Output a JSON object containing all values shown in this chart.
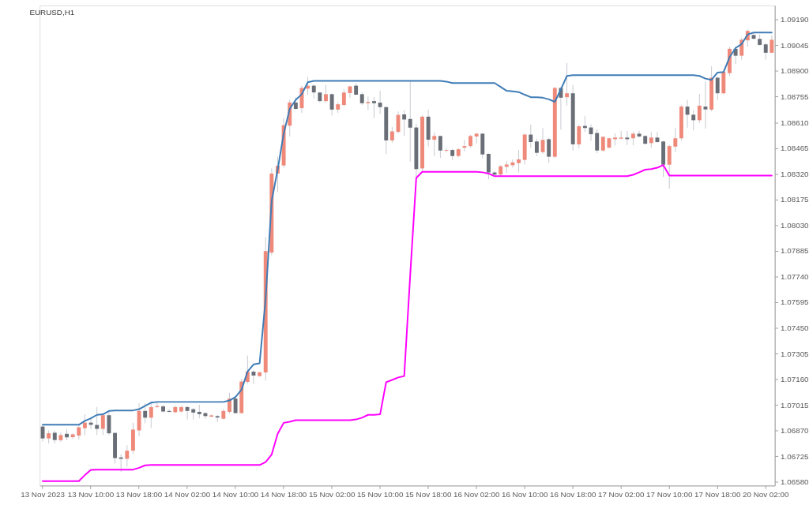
{
  "chart_data": {
    "type": "candlestick",
    "title": "EURUSD,H1",
    "categories": [
      "13 Nov 2023",
      null,
      null,
      null,
      null,
      null,
      null,
      null,
      "13 Nov 10:00",
      null,
      null,
      null,
      null,
      null,
      null,
      null,
      "13 Nov 18:00",
      null,
      null,
      null,
      null,
      null,
      null,
      null,
      "14 Nov 02:00",
      null,
      null,
      null,
      null,
      null,
      null,
      null,
      "14 Nov 10:00",
      null,
      null,
      null,
      null,
      null,
      null,
      null,
      "14 Nov 18:00",
      null,
      null,
      null,
      null,
      null,
      null,
      null,
      "15 Nov 02:00",
      null,
      null,
      null,
      null,
      null,
      null,
      null,
      "15 Nov 10:00",
      null,
      null,
      null,
      null,
      null,
      null,
      null,
      "15 Nov 18:00",
      null,
      null,
      null,
      null,
      null,
      null,
      null,
      "16 Nov 02:00",
      null,
      null,
      null,
      null,
      null,
      null,
      null,
      "16 Nov 10:00",
      null,
      null,
      null,
      null,
      null,
      null,
      null,
      "16 Nov 18:00",
      null,
      null,
      null,
      null,
      null,
      null,
      null,
      "17 Nov 02:00",
      null,
      null,
      null,
      null,
      null,
      null,
      null,
      "17 Nov 10:00",
      null,
      null,
      null,
      null,
      null,
      null,
      null,
      "17 Nov 18:00",
      null,
      null,
      null,
      null,
      null,
      null,
      null,
      "20 Nov 02:00",
      null
    ],
    "ohlc": [
      [
        1.06893,
        1.06903,
        1.06808,
        1.06826
      ],
      [
        1.06826,
        1.06871,
        1.06798,
        1.06855
      ],
      [
        1.06858,
        1.06871,
        1.06798,
        1.06817
      ],
      [
        1.06816,
        1.0686,
        1.06806,
        1.06845
      ],
      [
        1.06852,
        1.06879,
        1.06816,
        1.06832
      ],
      [
        1.06833,
        1.06855,
        1.06823,
        1.06849
      ],
      [
        1.06842,
        1.06903,
        1.0682,
        1.06889
      ],
      [
        1.06884,
        1.06962,
        1.06845,
        1.06915
      ],
      [
        1.06915,
        1.06943,
        1.06879,
        1.06903
      ],
      [
        1.06902,
        1.07003,
        1.06845,
        1.0688
      ],
      [
        1.0688,
        1.06966,
        1.06845,
        1.06957
      ],
      [
        1.06957,
        1.06976,
        1.06845,
        1.06855
      ],
      [
        1.06857,
        1.0686,
        1.06684,
        1.06715
      ],
      [
        1.06719,
        1.06738,
        1.06638,
        1.06711
      ],
      [
        1.06711,
        1.06787,
        1.06667,
        1.06757
      ],
      [
        1.06757,
        1.06914,
        1.06738,
        1.06876
      ],
      [
        1.06871,
        1.07025,
        1.06838,
        1.06981
      ],
      [
        1.06981,
        1.07025,
        1.06911,
        1.06943
      ],
      [
        1.06943,
        1.07035,
        1.06884,
        1.07003
      ],
      [
        1.07003,
        1.07035,
        1.06998,
        1.07009
      ],
      [
        1.07007,
        1.07016,
        1.06972,
        1.06978
      ],
      [
        1.06981,
        1.06991,
        1.06972,
        1.06976
      ],
      [
        1.06974,
        1.07013,
        1.06969,
        1.07003
      ],
      [
        1.06978,
        1.0701,
        1.06972,
        1.07003
      ],
      [
        1.07003,
        1.0701,
        1.06933,
        1.06981
      ],
      [
        1.06991,
        1.06998,
        1.06933,
        1.06972
      ],
      [
        1.06976,
        1.07016,
        1.0694,
        1.06963
      ],
      [
        1.06969,
        1.06972,
        1.06937,
        1.06952
      ],
      [
        1.06949,
        1.06962,
        1.06946,
        1.06956
      ],
      [
        1.06952,
        1.06958,
        1.06918,
        1.06944
      ],
      [
        1.06937,
        1.06991,
        1.06933,
        1.06981
      ],
      [
        1.06976,
        1.07083,
        1.06966,
        1.07051
      ],
      [
        1.07051,
        1.07057,
        1.06966,
        1.06969
      ],
      [
        1.06969,
        1.07162,
        1.06966,
        1.07147
      ],
      [
        1.07145,
        1.07294,
        1.07134,
        1.07203
      ],
      [
        1.07203,
        1.0721,
        1.07134,
        1.07181
      ],
      [
        1.07178,
        1.07203,
        1.07174,
        1.07199
      ],
      [
        1.07199,
        1.07963,
        1.07152,
        1.07883
      ],
      [
        1.07875,
        1.0835,
        1.0786,
        1.08321
      ],
      [
        1.08321,
        1.08416,
        1.08218,
        1.08365
      ],
      [
        1.08367,
        1.08635,
        1.08354,
        1.08594
      ],
      [
        1.08591,
        1.08737,
        1.0853,
        1.08722
      ],
      [
        1.08722,
        1.08752,
        1.08682,
        1.08686
      ],
      [
        1.0869,
        1.08817,
        1.08664,
        1.08804
      ],
      [
        1.088,
        1.08866,
        1.08766,
        1.08817
      ],
      [
        1.08817,
        1.08825,
        1.08744,
        1.08779
      ],
      [
        1.08778,
        1.08784,
        1.08722,
        1.0873
      ],
      [
        1.0873,
        1.08822,
        1.08722,
        1.08769
      ],
      [
        1.08769,
        1.08774,
        1.08649,
        1.08682
      ],
      [
        1.08682,
        1.08722,
        1.08664,
        1.08712
      ],
      [
        1.08708,
        1.08796,
        1.08701,
        1.08778
      ],
      [
        1.08775,
        1.08817,
        1.08749,
        1.08813
      ],
      [
        1.08817,
        1.08831,
        1.08763,
        1.08766
      ],
      [
        1.08769,
        1.08781,
        1.08708,
        1.08718
      ],
      [
        1.08718,
        1.08756,
        1.08679,
        1.08725
      ],
      [
        1.0873,
        1.08752,
        1.08635,
        1.08718
      ],
      [
        1.08721,
        1.08787,
        1.08657,
        1.08696
      ],
      [
        1.08696,
        1.08701,
        1.0843,
        1.08508
      ],
      [
        1.08508,
        1.08584,
        1.08495,
        1.08559
      ],
      [
        1.08556,
        1.08671,
        1.08547,
        1.08652
      ],
      [
        1.08655,
        1.08679,
        1.08533,
        1.08626
      ],
      [
        1.08629,
        1.08842,
        1.08389,
        1.0858
      ],
      [
        1.08581,
        1.08603,
        1.08302,
        1.08346
      ],
      [
        1.0835,
        1.0865,
        1.08335,
        1.08642
      ],
      [
        1.08642,
        1.08682,
        1.08474,
        1.08512
      ],
      [
        1.08512,
        1.08554,
        1.08419,
        1.08533
      ],
      [
        1.08533,
        1.08535,
        1.0841,
        1.08451
      ],
      [
        1.0845,
        1.08462,
        1.0844,
        1.08454
      ],
      [
        1.08454,
        1.0846,
        1.08398,
        1.0842
      ],
      [
        1.0842,
        1.08465,
        1.08413,
        1.08458
      ],
      [
        1.08467,
        1.08511,
        1.08445,
        1.08476
      ],
      [
        1.08476,
        1.08539,
        1.08467,
        1.08533
      ],
      [
        1.0853,
        1.08549,
        1.0849,
        1.08546
      ],
      [
        1.08546,
        1.0855,
        1.08407,
        1.08429
      ],
      [
        1.08432,
        1.08435,
        1.08289,
        1.08327
      ],
      [
        1.08327,
        1.08334,
        1.08309,
        1.08315
      ],
      [
        1.08315,
        1.08368,
        1.08309,
        1.08362
      ],
      [
        1.08359,
        1.08392,
        1.08324,
        1.08372
      ],
      [
        1.08368,
        1.08401,
        1.08354,
        1.08384
      ],
      [
        1.0838,
        1.08455,
        1.08328,
        1.08401
      ],
      [
        1.08398,
        1.08547,
        1.08372,
        1.08541
      ],
      [
        1.08541,
        1.08598,
        1.08467,
        1.08499
      ],
      [
        1.08502,
        1.08518,
        1.08419,
        1.08438
      ],
      [
        1.08442,
        1.08577,
        1.08433,
        1.08511
      ],
      [
        1.08515,
        1.08524,
        1.08381,
        1.08416
      ],
      [
        1.08416,
        1.0881,
        1.08407,
        1.08804
      ],
      [
        1.08804,
        1.08813,
        1.08569,
        1.08749
      ],
      [
        1.08752,
        1.08945,
        1.08705,
        1.08774
      ],
      [
        1.08774,
        1.08822,
        1.08451,
        1.08486
      ],
      [
        1.08486,
        1.08598,
        1.08463,
        1.08588
      ],
      [
        1.0859,
        1.08647,
        1.08555,
        1.08578
      ],
      [
        1.08581,
        1.08598,
        1.08506,
        1.08543
      ],
      [
        1.0855,
        1.08572,
        1.08436,
        1.08451
      ],
      [
        1.08451,
        1.08533,
        1.08442,
        1.08528
      ],
      [
        1.08467,
        1.08524,
        1.08464,
        1.0852
      ],
      [
        1.08515,
        1.08547,
        1.0848,
        1.08524
      ],
      [
        1.08518,
        1.08562,
        1.08515,
        1.08524
      ],
      [
        1.08524,
        1.08562,
        1.08482,
        1.08515
      ],
      [
        1.0852,
        1.08558,
        1.0848,
        1.08546
      ],
      [
        1.08546,
        1.08562,
        1.08525,
        1.0853
      ],
      [
        1.08533,
        1.08537,
        1.08486,
        1.08489
      ],
      [
        1.08493,
        1.08555,
        1.08467,
        1.08524
      ],
      [
        1.08524,
        1.08555,
        1.08496,
        1.08499
      ],
      [
        1.08502,
        1.08506,
        1.08302,
        1.08371
      ],
      [
        1.08371,
        1.08484,
        1.08236,
        1.08476
      ],
      [
        1.08473,
        1.08577,
        1.08442,
        1.0852
      ],
      [
        1.0852,
        1.08708,
        1.08507,
        1.08699
      ],
      [
        1.08699,
        1.08737,
        1.0858,
        1.08653
      ],
      [
        1.08653,
        1.08679,
        1.08565,
        1.08622
      ],
      [
        1.08622,
        1.0877,
        1.08606,
        1.08704
      ],
      [
        1.08699,
        1.0884,
        1.08574,
        1.08683
      ],
      [
        1.08682,
        1.08927,
        1.08673,
        1.08862
      ],
      [
        1.08862,
        1.08869,
        1.08735,
        1.08774
      ],
      [
        1.08774,
        1.08905,
        1.08767,
        1.08895
      ],
      [
        1.08888,
        1.09037,
        1.08872,
        1.09025
      ],
      [
        1.09025,
        1.09037,
        1.08939,
        1.08986
      ],
      [
        1.08986,
        1.09088,
        1.08964,
        1.09076
      ],
      [
        1.09073,
        1.09135,
        1.09037,
        1.09126
      ],
      [
        1.09103,
        1.09109,
        1.09076,
        1.09082
      ],
      [
        1.09081,
        1.09106,
        1.09044,
        1.09047
      ],
      [
        1.0905,
        1.09059,
        1.08964,
        1.09003
      ],
      [
        1.09003,
        1.091,
        1.09,
        1.09076
      ]
    ],
    "colors": [
      "#6a6f77",
      "#ef8a7b",
      "#6a6f77",
      "#ef8a7b",
      "#6a6f77",
      "#ef8a7b",
      "#ef8a7b",
      "#ef8a7b",
      "#6a6f77",
      "#6a6f77",
      "#ef8a7b",
      "#6a6f77",
      "#6a6f77",
      "#6a6f77",
      "#ef8a7b",
      "#ef8a7b",
      "#ef8a7b",
      "#6a6f77",
      "#ef8a7b",
      "#ef8a7b",
      "#6a6f77",
      "#6a6f77",
      "#ef8a7b",
      "#ef8a7b",
      "#6a6f77",
      "#6a6f77",
      "#6a6f77",
      "#6a6f77",
      "#ef8a7b",
      "#6a6f77",
      "#ef8a7b",
      "#ef8a7b",
      "#6a6f77",
      "#ef8a7b",
      "#ef8a7b",
      "#6a6f77",
      "#ef8a7b",
      "#ef8a7b",
      "#ef8a7b",
      "#ef8a7b",
      "#ef8a7b",
      "#ef8a7b",
      "#6a6f77",
      "#ef8a7b",
      "#ef8a7b",
      "#6a6f77",
      "#6a6f77",
      "#ef8a7b",
      "#6a6f77",
      "#ef8a7b",
      "#ef8a7b",
      "#ef8a7b",
      "#6a6f77",
      "#6a6f77",
      "#ef8a7b",
      "#6a6f77",
      "#6a6f77",
      "#6a6f77",
      "#ef8a7b",
      "#ef8a7b",
      "#6a6f77",
      "#6a6f77",
      "#6a6f77",
      "#ef8a7b",
      "#6a6f77",
      "#ef8a7b",
      "#6a6f77",
      "#ef8a7b",
      "#6a6f77",
      "#ef8a7b",
      "#ef8a7b",
      "#ef8a7b",
      "#ef8a7b",
      "#6a6f77",
      "#6a6f77",
      "#6a6f77",
      "#ef8a7b",
      "#ef8a7b",
      "#ef8a7b",
      "#ef8a7b",
      "#ef8a7b",
      "#6a6f77",
      "#6a6f77",
      "#ef8a7b",
      "#6a6f77",
      "#ef8a7b",
      "#6a6f77",
      "#ef8a7b",
      "#6a6f77",
      "#ef8a7b",
      "#6a6f77",
      "#6a6f77",
      "#6a6f77",
      "#ef8a7b",
      "#ef8a7b",
      "#ef8a7b",
      "#ef8a7b",
      "#6a6f77",
      "#ef8a7b",
      "#6a6f77",
      "#6a6f77",
      "#ef8a7b",
      "#6a6f77",
      "#6a6f77",
      "#ef8a7b",
      "#ef8a7b",
      "#ef8a7b",
      "#6a6f77",
      "#6a6f77",
      "#ef8a7b",
      "#6a6f77",
      "#ef8a7b",
      "#6a6f77",
      "#ef8a7b",
      "#ef8a7b",
      "#6a6f77",
      "#ef8a7b",
      "#ef8a7b",
      "#6a6f77",
      "#6a6f77",
      "#6a6f77",
      "#ef8a7b"
    ],
    "series": [
      {
        "type": "line",
        "color": "#3f7cb6",
        "values": [
          1.06903,
          1.06903,
          1.06903,
          1.06903,
          1.06903,
          1.06903,
          1.06903,
          1.06925,
          1.0694,
          1.06959,
          1.06962,
          1.06981,
          1.06984,
          1.06984,
          1.06984,
          1.06984,
          1.06991,
          1.0701,
          1.07028,
          1.07032,
          1.07032,
          1.07032,
          1.07032,
          1.07032,
          1.07032,
          1.07032,
          1.07032,
          1.07032,
          1.07032,
          1.07032,
          1.07032,
          1.0704,
          1.0706,
          1.07101,
          1.07203,
          1.07244,
          1.0725,
          1.07612,
          1.08167,
          1.08343,
          1.08547,
          1.08686,
          1.08737,
          1.08769,
          1.08836,
          1.08844,
          1.08844,
          1.08844,
          1.08844,
          1.08844,
          1.08844,
          1.08844,
          1.08844,
          1.08844,
          1.08844,
          1.08844,
          1.08844,
          1.08844,
          1.08844,
          1.08844,
          1.08844,
          1.08844,
          1.08844,
          1.08844,
          1.08844,
          1.08844,
          1.08844,
          1.0884,
          1.08832,
          1.08832,
          1.08832,
          1.08832,
          1.08832,
          1.08832,
          1.08832,
          1.08832,
          1.0881,
          1.08788,
          1.08785,
          1.08781,
          1.08766,
          1.08752,
          1.08752,
          1.08749,
          1.0874,
          1.08726,
          1.08796,
          1.08872,
          1.08876,
          1.08876,
          1.08876,
          1.08876,
          1.08876,
          1.08876,
          1.08876,
          1.08876,
          1.08876,
          1.08876,
          1.08876,
          1.08876,
          1.08876,
          1.08876,
          1.08876,
          1.08876,
          1.08876,
          1.08876,
          1.08876,
          1.08876,
          1.08876,
          1.08872,
          1.08857,
          1.0885,
          1.08891,
          1.08894,
          1.08978,
          1.0903,
          1.09052,
          1.09106,
          1.09117,
          1.09117,
          1.09117,
          1.09117
        ]
      },
      {
        "type": "line",
        "color": "#ff00ff",
        "values": [
          1.06585,
          1.06585,
          1.06585,
          1.06585,
          1.06585,
          1.06585,
          1.06585,
          1.06619,
          1.06648,
          1.0665,
          1.0665,
          1.0665,
          1.0665,
          1.0665,
          1.0665,
          1.0665,
          1.0666,
          1.06674,
          1.06676,
          1.06676,
          1.06676,
          1.06676,
          1.06676,
          1.06676,
          1.06676,
          1.06676,
          1.06676,
          1.06676,
          1.06676,
          1.06676,
          1.06676,
          1.06676,
          1.06676,
          1.06676,
          1.06676,
          1.06676,
          1.06676,
          1.06692,
          1.06735,
          1.06852,
          1.06914,
          1.0692,
          1.06929,
          1.06929,
          1.06929,
          1.06929,
          1.06929,
          1.06929,
          1.06929,
          1.06929,
          1.06929,
          1.06929,
          1.06933,
          1.06943,
          1.06959,
          1.06959,
          1.06962,
          1.07143,
          1.07156,
          1.0717,
          1.07178,
          1.0775,
          1.08296,
          1.08331,
          1.08331,
          1.08331,
          1.08331,
          1.08331,
          1.08331,
          1.08331,
          1.08331,
          1.08331,
          1.08331,
          1.08328,
          1.08321,
          1.08306,
          1.08306,
          1.08306,
          1.08306,
          1.08306,
          1.08306,
          1.08306,
          1.08306,
          1.08306,
          1.08306,
          1.08306,
          1.08306,
          1.08306,
          1.08306,
          1.08306,
          1.08306,
          1.08306,
          1.08306,
          1.08306,
          1.08306,
          1.08306,
          1.08306,
          1.08306,
          1.08314,
          1.08328,
          1.08343,
          1.08346,
          1.08354,
          1.08369,
          1.0831,
          1.0831,
          1.0831,
          1.0831,
          1.0831,
          1.0831,
          1.0831,
          1.0831,
          1.0831,
          1.0831,
          1.0831,
          1.0831,
          1.0831,
          1.0831,
          1.0831,
          1.0831,
          1.0831,
          1.0831
        ]
      }
    ],
    "ylim": [
      1.0656,
      1.0927
    ],
    "yticks": [
      {
        "value": 1.0658,
        "label": "1.06580"
      },
      1.06725,
      {
        "value": 1.0687,
        "label": "1.06870"
      },
      1.07015,
      {
        "value": 1.0716,
        "label": "1.07160"
      },
      1.07305,
      {
        "value": 1.0745,
        "label": "1.07450"
      },
      1.07595,
      {
        "value": 1.0774,
        "label": "1.07740"
      },
      1.07885,
      {
        "value": 1.0803,
        "label": "1.08030"
      },
      1.08175,
      {
        "value": 1.0832,
        "label": "1.08320"
      },
      1.08465,
      {
        "value": 1.0861,
        "label": "1.08610"
      },
      1.08755,
      {
        "value": 1.089,
        "label": "1.08900"
      },
      1.09045,
      {
        "value": 1.0919,
        "label": "1.09190"
      }
    ]
  }
}
